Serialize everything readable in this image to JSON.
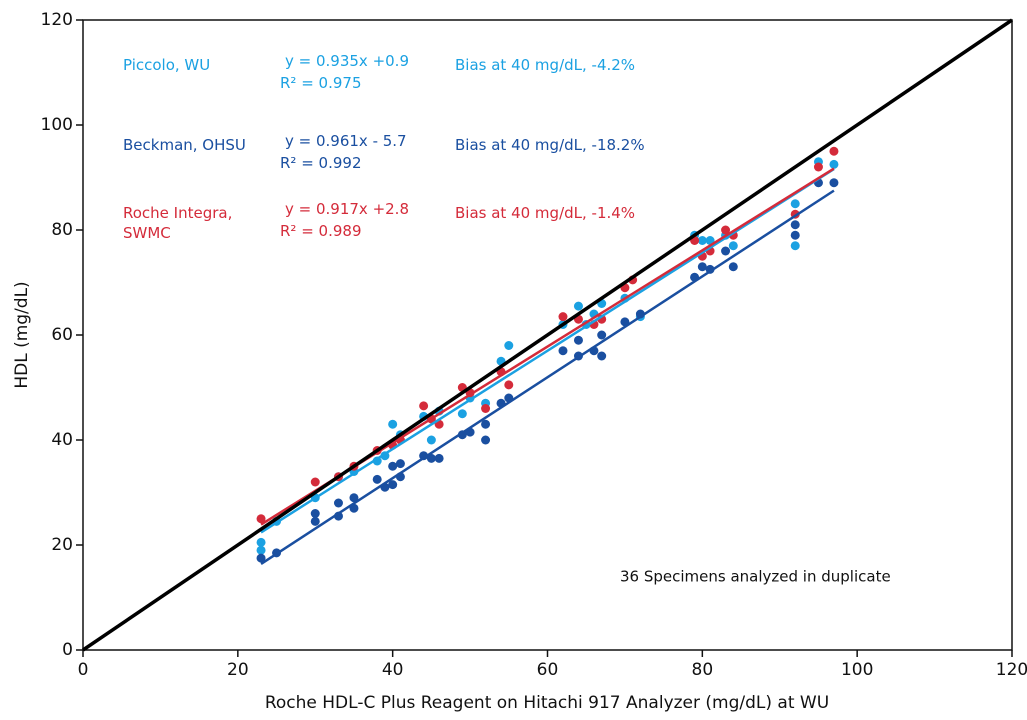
{
  "chart_data": {
    "type": "scatter",
    "x_label": "Roche HDL-C Plus Reagent on Hitachi 917 Analyzer (mg/dL) at WU",
    "y_label": "HDL (mg/dL)",
    "xlim": [
      0,
      120
    ],
    "ylim": [
      0,
      120
    ],
    "xticks": [
      0,
      20,
      40,
      60,
      80,
      100,
      120
    ],
    "yticks": [
      0,
      20,
      40,
      60,
      80,
      100,
      120
    ],
    "grid": false,
    "identity_line": {
      "x": [
        0,
        120
      ],
      "y": [
        0,
        120
      ],
      "color": "#000000"
    },
    "note": "36 Specimens analyzed in duplicate",
    "series": [
      {
        "name": "Piccolo, WU",
        "color": "#1ba1e2",
        "equation": "y = 0.935x +0.9",
        "r2": "R² = 0.975",
        "bias": "Bias at 40 mg/dL, -4.2%",
        "x": [
          23,
          23,
          25,
          30,
          33,
          35,
          38,
          39,
          40,
          41,
          44,
          45,
          46,
          49,
          50,
          52,
          54,
          55,
          62,
          64,
          65,
          66,
          67,
          70,
          72,
          79,
          80,
          81,
          83,
          84,
          92,
          92,
          95,
          97
        ],
        "values": [
          20.5,
          19,
          24.5,
          29,
          33,
          34,
          36,
          37,
          43,
          41,
          44.5,
          40,
          45.5,
          45,
          48,
          47,
          55,
          58,
          62,
          65.5,
          62,
          64,
          66,
          67,
          63.5,
          79,
          78,
          78,
          79,
          77,
          85,
          77,
          93,
          92.5
        ],
        "fit": {
          "x": [
            23,
            97
          ],
          "y": [
            22.4,
            91.6
          ]
        }
      },
      {
        "name": "Beckman, OHSU",
        "color": "#1a4fa0",
        "equation": "y = 0.961x - 5.7",
        "r2": "R² = 0.992",
        "bias": "Bias at 40 mg/dL, -18.2%",
        "x": [
          23,
          25,
          30,
          30,
          33,
          33,
          35,
          35,
          38,
          39,
          40,
          40,
          41,
          41,
          44,
          45,
          46,
          49,
          50,
          52,
          52,
          54,
          55,
          62,
          64,
          64,
          66,
          67,
          67,
          70,
          72,
          79,
          80,
          81,
          83,
          84,
          92,
          92,
          95,
          97
        ],
        "values": [
          17.5,
          18.5,
          24.5,
          26,
          25.5,
          28,
          27,
          29,
          32.5,
          31,
          31.5,
          35,
          33,
          35.5,
          37,
          36.5,
          36.5,
          41,
          41.5,
          40,
          43,
          47,
          48,
          57,
          56,
          59,
          57,
          56,
          60,
          62.5,
          64,
          71,
          73,
          72.5,
          76,
          73,
          79,
          81,
          89,
          89
        ],
        "fit": {
          "x": [
            23,
            97
          ],
          "y": [
            16.4,
            87.5
          ]
        }
      },
      {
        "name": "Roche Integra, SWMC",
        "color": "#d42b3a",
        "equation": "y = 0.917x  +2.8",
        "r2": "R² = 0.989",
        "bias": "Bias at 40 mg/dL, -1.4%",
        "x": [
          23,
          30,
          33,
          35,
          38,
          40,
          41,
          44,
          45,
          46,
          49,
          50,
          52,
          54,
          55,
          62,
          64,
          66,
          67,
          70,
          71,
          79,
          80,
          81,
          83,
          84,
          92,
          95,
          97
        ],
        "values": [
          25,
          32,
          33,
          35,
          38,
          39,
          40,
          46.5,
          44,
          43,
          50,
          49,
          46,
          53,
          50.5,
          63.5,
          63,
          62,
          63,
          69,
          70.5,
          78,
          75,
          76,
          80,
          79,
          83,
          92,
          95
        ],
        "fit": {
          "x": [
            23,
            97
          ],
          "y": [
            23.9,
            91.7
          ]
        }
      }
    ]
  }
}
